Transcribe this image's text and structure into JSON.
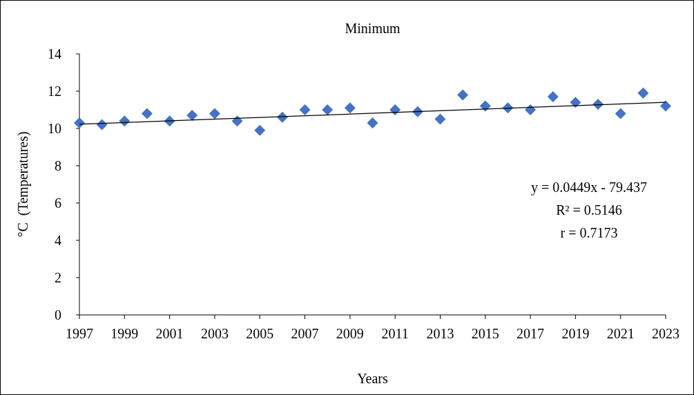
{
  "chart_data": {
    "type": "scatter",
    "title": "Minimum",
    "xlabel": "Years",
    "ylabel": "°C  (Temperatures)",
    "xlim": [
      1997,
      2023
    ],
    "xticks": [
      1997,
      1999,
      2001,
      2003,
      2005,
      2007,
      2009,
      2011,
      2013,
      2015,
      2017,
      2019,
      2021,
      2023
    ],
    "ylim": [
      0,
      14
    ],
    "yticks": [
      0,
      2,
      4,
      6,
      8,
      10,
      12,
      14
    ],
    "grid": false,
    "series": [
      {
        "color": "#4472c4",
        "marker": "diamond",
        "x": [
          1997,
          1998,
          1999,
          2000,
          2001,
          2002,
          2003,
          2004,
          2005,
          2006,
          2007,
          2008,
          2009,
          2010,
          2011,
          2012,
          2013,
          2014,
          2015,
          2016,
          2017,
          2018,
          2019,
          2020,
          2021,
          2022,
          2023
        ],
        "values": [
          10.3,
          10.2,
          10.4,
          10.8,
          10.4,
          10.7,
          10.8,
          10.4,
          9.9,
          10.6,
          11.0,
          11.0,
          11.1,
          10.3,
          11.0,
          10.9,
          10.5,
          11.8,
          11.2,
          11.1,
          11.0,
          11.7,
          11.4,
          11.3,
          10.8,
          11.9,
          11.2
        ]
      },
      {
        "type": "line",
        "color": "#000000",
        "marker": "none",
        "x": [
          1997,
          2023
        ],
        "values": [
          10.23,
          11.4
        ]
      }
    ],
    "annotations": [
      "y = 0.0449x - 79.437",
      "R² = 0.5146",
      "r = 0.7173"
    ]
  }
}
